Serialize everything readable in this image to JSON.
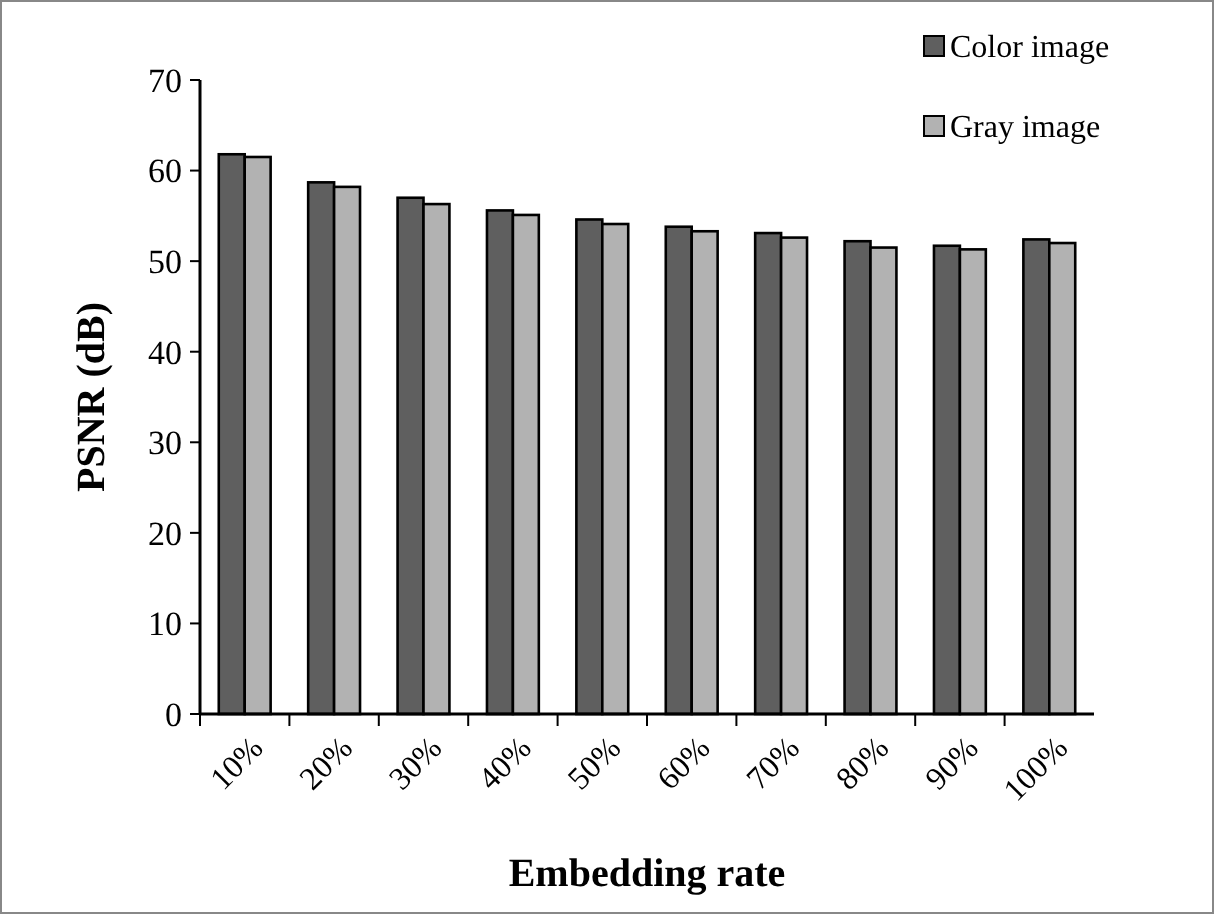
{
  "chart_data": {
    "type": "bar",
    "xlabel": "Embedding rate",
    "ylabel": "PSNR (dB)",
    "categories": [
      "10%",
      "20%",
      "30%",
      "40%",
      "50%",
      "60%",
      "70%",
      "80%",
      "90%",
      "100%"
    ],
    "series": [
      {
        "name": "Color image",
        "color": "#5f5f5f",
        "values": [
          61.8,
          58.7,
          57.0,
          55.6,
          54.6,
          53.8,
          53.1,
          52.2,
          51.7,
          52.4
        ]
      },
      {
        "name": "Gray image",
        "color": "#b2b2b2",
        "values": [
          61.5,
          58.2,
          56.3,
          55.1,
          54.1,
          53.3,
          52.6,
          51.5,
          51.3,
          52.0
        ]
      }
    ],
    "ylim": [
      0,
      70
    ],
    "yticks": [
      0,
      10,
      20,
      30,
      40,
      50,
      60,
      70
    ],
    "grid": false,
    "legend": "top right"
  }
}
